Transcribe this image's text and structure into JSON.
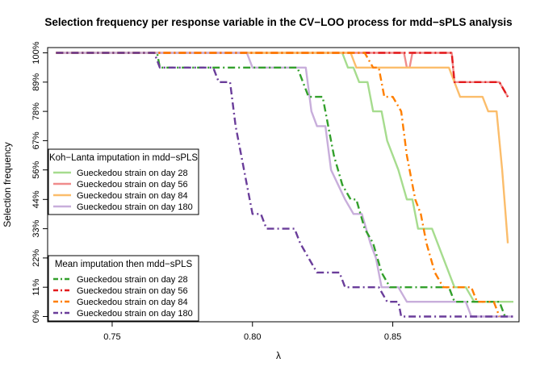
{
  "chart_data": {
    "type": "line",
    "title": "Selection frequency per response variable in the CV−LOO process for mdd−sPLS analysis",
    "xlabel": "λ",
    "ylabel": "Selection frequency",
    "xlim": [
      0.727,
      0.895
    ],
    "ylim": [
      -0.02,
      1.02
    ],
    "x_ticks": [
      0.75,
      0.8,
      0.85
    ],
    "x_tick_labels": [
      "0.75",
      "0.80",
      "0.85"
    ],
    "y_ticks": [
      0,
      0.111,
      0.222,
      0.333,
      0.444,
      0.556,
      0.667,
      0.778,
      0.889,
      1.0
    ],
    "y_tick_labels": [
      "0%",
      "11%",
      "22%",
      "33%",
      "44%",
      "56%",
      "67%",
      "78%",
      "89%",
      "100%"
    ],
    "legends": [
      {
        "title": "Koh−Lanta imputation in mdd−sPLS",
        "placement": "middle-left",
        "entries": [
          "Gueckedou strain on day 28",
          "Gueckedou strain on day 56",
          "Gueckedou strain on day 84",
          "Gueckedou strain on day 180"
        ]
      },
      {
        "title": "Mean imputation then mdd−sPLS",
        "placement": "bottom-left",
        "entries": [
          "Gueckedou strain on day 28",
          "Gueckedou strain on day 56",
          "Gueckedou strain on day 84",
          "Gueckedou strain on day 180"
        ]
      }
    ],
    "series": [
      {
        "name": "Gueckedou strain on day 28",
        "group": "Koh−Lanta imputation in mdd−sPLS",
        "color": "#a6dc8e",
        "dash": "solid",
        "points": [
          [
            0.73,
            1
          ],
          [
            0.832,
            1
          ],
          [
            0.834,
            0.944
          ],
          [
            0.836,
            0.944
          ],
          [
            0.838,
            0.889
          ],
          [
            0.841,
            0.889
          ],
          [
            0.843,
            0.778
          ],
          [
            0.846,
            0.778
          ],
          [
            0.848,
            0.667
          ],
          [
            0.852,
            0.556
          ],
          [
            0.855,
            0.444
          ],
          [
            0.857,
            0.444
          ],
          [
            0.859,
            0.333
          ],
          [
            0.864,
            0.333
          ],
          [
            0.868,
            0.222
          ],
          [
            0.872,
            0.111
          ],
          [
            0.876,
            0.111
          ],
          [
            0.879,
            0.056
          ],
          [
            0.893,
            0.056
          ]
        ]
      },
      {
        "name": "Gueckedou strain on day 56",
        "group": "Koh−Lanta imputation in mdd−sPLS",
        "color": "#f08c8c",
        "dash": "solid",
        "points": [
          [
            0.73,
            1
          ],
          [
            0.854,
            1
          ],
          [
            0.855,
            0.944
          ],
          [
            0.856,
            0.944
          ],
          [
            0.857,
            1
          ],
          [
            0.871,
            1
          ],
          [
            0.872,
            0.889
          ],
          [
            0.888,
            0.889
          ],
          [
            0.891,
            0.833
          ]
        ]
      },
      {
        "name": "Gueckedou strain on day 84",
        "group": "Koh−Lanta imputation in mdd−sPLS",
        "color": "#fbbd6b",
        "dash": "solid",
        "points": [
          [
            0.73,
            1
          ],
          [
            0.835,
            1
          ],
          [
            0.837,
            0.944
          ],
          [
            0.87,
            0.944
          ],
          [
            0.874,
            0.833
          ],
          [
            0.882,
            0.833
          ],
          [
            0.884,
            0.778
          ],
          [
            0.887,
            0.778
          ],
          [
            0.889,
            0.556
          ],
          [
            0.891,
            0.278
          ]
        ]
      },
      {
        "name": "Gueckedou strain on day 180",
        "group": "Koh−Lanta imputation in mdd−sPLS",
        "color": "#c8aedb",
        "dash": "solid",
        "points": [
          [
            0.73,
            1
          ],
          [
            0.798,
            1
          ],
          [
            0.8,
            0.944
          ],
          [
            0.819,
            0.944
          ],
          [
            0.821,
            0.778
          ],
          [
            0.823,
            0.722
          ],
          [
            0.826,
            0.722
          ],
          [
            0.828,
            0.556
          ],
          [
            0.833,
            0.444
          ],
          [
            0.836,
            0.389
          ],
          [
            0.839,
            0.389
          ],
          [
            0.842,
            0.278
          ],
          [
            0.844,
            0.222
          ],
          [
            0.846,
            0.111
          ],
          [
            0.852,
            0.111
          ],
          [
            0.855,
            0.056
          ],
          [
            0.876,
            0.056
          ],
          [
            0.878,
            0
          ],
          [
            0.893,
            0
          ]
        ]
      },
      {
        "name": "Gueckedou strain on day 28",
        "group": "Mean imputation then mdd−sPLS",
        "color": "#33a02c",
        "dash": "dashdot",
        "points": [
          [
            0.73,
            1
          ],
          [
            0.766,
            1
          ],
          [
            0.767,
            0.944
          ],
          [
            0.816,
            0.944
          ],
          [
            0.818,
            0.889
          ],
          [
            0.82,
            0.833
          ],
          [
            0.825,
            0.833
          ],
          [
            0.827,
            0.722
          ],
          [
            0.829,
            0.611
          ],
          [
            0.832,
            0.5
          ],
          [
            0.835,
            0.444
          ],
          [
            0.837,
            0.444
          ],
          [
            0.84,
            0.333
          ],
          [
            0.843,
            0.278
          ],
          [
            0.846,
            0.167
          ],
          [
            0.849,
            0.111
          ],
          [
            0.87,
            0.111
          ],
          [
            0.872,
            0.056
          ],
          [
            0.888,
            0.056
          ],
          [
            0.89,
            0
          ]
        ]
      },
      {
        "name": "Gueckedou strain on day 56",
        "group": "Mean imputation then mdd−sPLS",
        "color": "#e31a1c",
        "dash": "dashdot",
        "points": [
          [
            0.73,
            1
          ],
          [
            0.871,
            1
          ],
          [
            0.872,
            0.889
          ],
          [
            0.888,
            0.889
          ],
          [
            0.891,
            0.833
          ]
        ]
      },
      {
        "name": "Gueckedou strain on day 84",
        "group": "Mean imputation then mdd−sPLS",
        "color": "#ff7f00",
        "dash": "dashdot",
        "points": [
          [
            0.73,
            1
          ],
          [
            0.84,
            1
          ],
          [
            0.843,
            0.944
          ],
          [
            0.845,
            0.944
          ],
          [
            0.847,
            0.833
          ],
          [
            0.85,
            0.833
          ],
          [
            0.853,
            0.778
          ],
          [
            0.855,
            0.611
          ],
          [
            0.858,
            0.444
          ],
          [
            0.86,
            0.389
          ],
          [
            0.862,
            0.278
          ],
          [
            0.865,
            0.167
          ],
          [
            0.868,
            0.111
          ],
          [
            0.878,
            0.111
          ],
          [
            0.88,
            0.056
          ],
          [
            0.886,
            0.056
          ],
          [
            0.888,
            0
          ]
        ]
      },
      {
        "name": "Gueckedou strain on day 180",
        "group": "Mean imputation then mdd−sPLS",
        "color": "#6a3d9a",
        "dash": "dashdot",
        "points": [
          [
            0.73,
            1
          ],
          [
            0.765,
            1
          ],
          [
            0.767,
            0.944
          ],
          [
            0.786,
            0.944
          ],
          [
            0.788,
            0.889
          ],
          [
            0.792,
            0.889
          ],
          [
            0.794,
            0.722
          ],
          [
            0.797,
            0.556
          ],
          [
            0.8,
            0.389
          ],
          [
            0.803,
            0.389
          ],
          [
            0.805,
            0.333
          ],
          [
            0.808,
            0.333
          ],
          [
            0.81,
            0.333
          ],
          [
            0.815,
            0.333
          ],
          [
            0.817,
            0.278
          ],
          [
            0.82,
            0.222
          ],
          [
            0.823,
            0.167
          ],
          [
            0.831,
            0.167
          ],
          [
            0.833,
            0.111
          ],
          [
            0.845,
            0.111
          ],
          [
            0.848,
            0.056
          ],
          [
            0.852,
            0.056
          ],
          [
            0.853,
            0
          ],
          [
            0.893,
            0
          ]
        ]
      }
    ]
  }
}
